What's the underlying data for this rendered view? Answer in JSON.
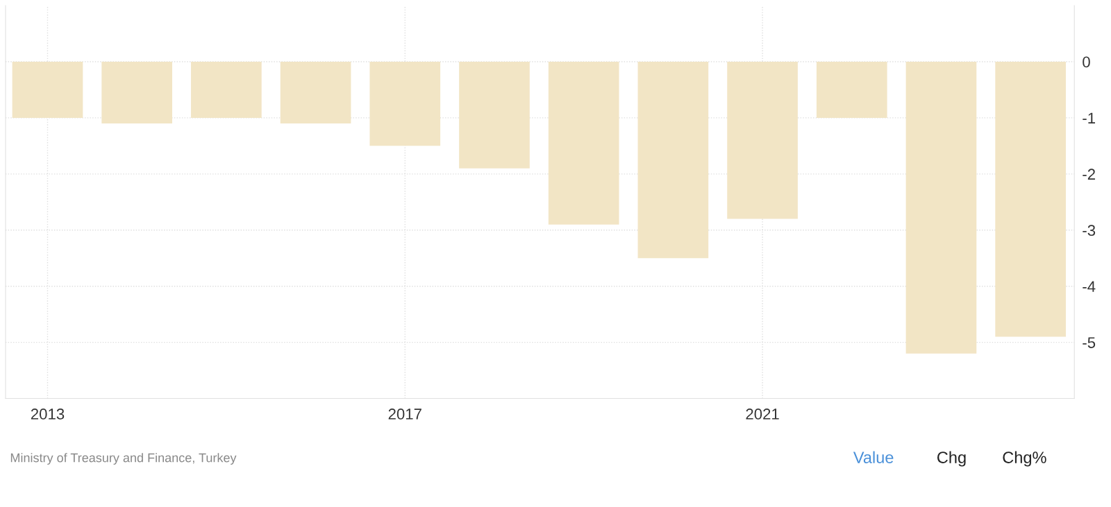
{
  "chart_data": {
    "type": "bar",
    "x": [
      2013,
      2014,
      2015,
      2016,
      2017,
      2018,
      2019,
      2020,
      2021,
      2022,
      2023,
      2024
    ],
    "values": [
      -1.0,
      -1.1,
      -1.0,
      -1.1,
      -1.5,
      -1.9,
      -2.9,
      -3.5,
      -2.8,
      -1.0,
      -5.2,
      -4.9
    ],
    "color": "#f2e5c5",
    "xlim": [
      2012.53,
      2024.49
    ],
    "xticks": [
      2013,
      2017,
      2021
    ],
    "ylim": [
      -6,
      1
    ],
    "yticks": [
      0,
      -1,
      -2,
      -3,
      -4,
      -5
    ],
    "grid": true,
    "annotations": [
      "Ministry of Treasury and Finance, Turkey",
      "Value",
      "Chg",
      "Chg%"
    ]
  }
}
